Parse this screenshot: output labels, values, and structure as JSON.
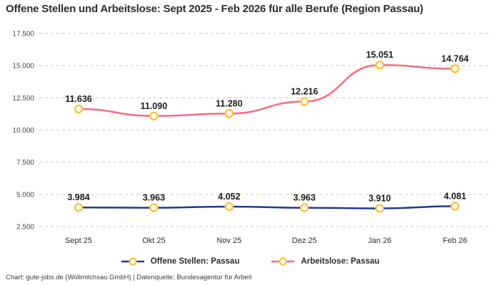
{
  "header": {
    "title": "Offene Stellen und Arbeitslose: Sept 2025 - Feb 2026 für alle Berufe (Region Passau)"
  },
  "footer": {
    "credit": "Chart: gute-jobs.de (Wollmilchsau GmbH) | Datenquelle: Bundesagentur für Arbeit"
  },
  "colors": {
    "offene_stellen_line": "#1e3a93",
    "arbeitslose_line": "#f96b80",
    "marker_stroke": "#fcc33d",
    "marker_fill": "#ffffff",
    "gridline": "#c9c9c9",
    "data_label": "#1c1c1c",
    "axis_label": "#4a4a4a"
  },
  "chart_data": {
    "type": "line",
    "title": "Offene Stellen und Arbeitslose: Sept 2025 - Feb 2026 für alle Berufe (Region Passau)",
    "categories": [
      "Sept 25",
      "Okt 25",
      "Nov 25",
      "Dez 25",
      "Jan 26",
      "Feb 26"
    ],
    "series": [
      {
        "name": "Offene Stellen: Passau",
        "color": "#1e3a93",
        "values": [
          3984,
          3963,
          4052,
          3963,
          3910,
          4081
        ],
        "labels": [
          "3.984",
          "3.963",
          "4.052",
          "3.963",
          "3.910",
          "4.081"
        ]
      },
      {
        "name": "Arbeitslose: Passau",
        "color": "#f96b80",
        "values": [
          11636,
          11090,
          11280,
          12216,
          15051,
          14764
        ],
        "labels": [
          "11.636",
          "11.090",
          "11.280",
          "12.216",
          "15.051",
          "14.764"
        ]
      }
    ],
    "y_ticks": [
      {
        "value": 2500,
        "label": "2.500"
      },
      {
        "value": 5000,
        "label": "5.000"
      },
      {
        "value": 7500,
        "label": "7.500"
      },
      {
        "value": 10000,
        "label": "10.000"
      },
      {
        "value": 12500,
        "label": "12.500"
      },
      {
        "value": 15000,
        "label": "15.000"
      },
      {
        "value": 17500,
        "label": "17.500"
      }
    ],
    "ylim": [
      2500,
      17500
    ],
    "grid": "horizontal-dashed",
    "legend_position": "bottom",
    "marker_style": "circle-gold-ring-white-fill"
  }
}
